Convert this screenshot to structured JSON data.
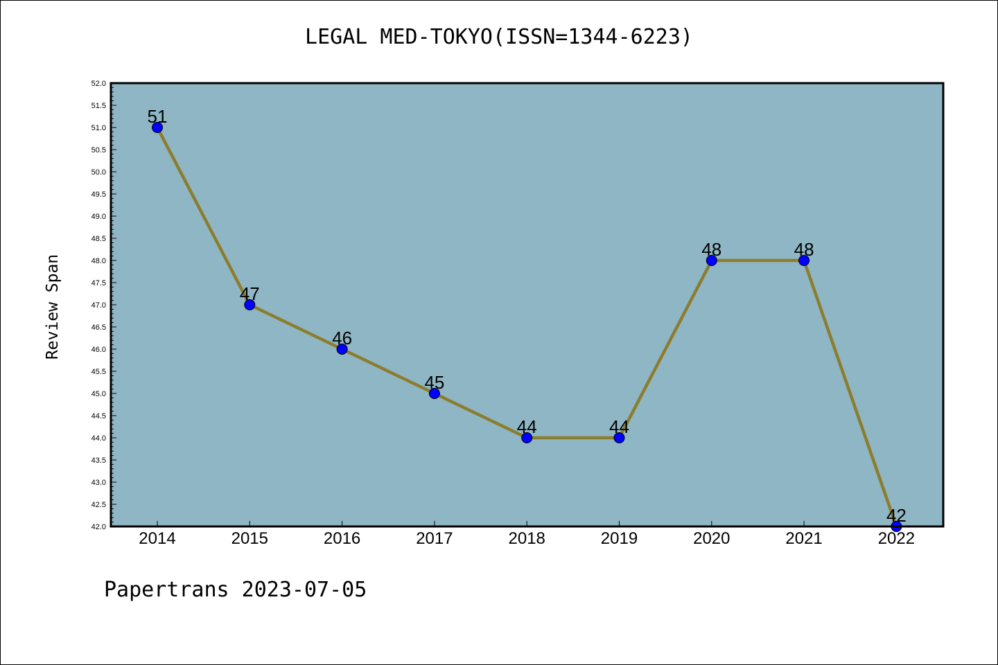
{
  "title": "LEGAL MED-TOKYO(ISSN=1344-6223)",
  "footer": "Papertrans 2023-07-05",
  "chart_data": {
    "type": "line",
    "title": "LEGAL MED-TOKYO(ISSN=1344-6223)",
    "xlabel": "",
    "ylabel": "Review Span",
    "categories": [
      "2014",
      "2015",
      "2016",
      "2017",
      "2018",
      "2019",
      "2020",
      "2021",
      "2022"
    ],
    "series": [
      {
        "values": [
          51,
          47,
          46,
          45,
          44,
          44,
          48,
          48,
          42
        ]
      }
    ],
    "ylim": [
      42.0,
      52.0
    ],
    "ytick_step": 0.5,
    "grid": false,
    "colors": {
      "plot_background": "#8fb6c4",
      "line": "#8c7d2e",
      "marker": "#0000ff"
    }
  }
}
